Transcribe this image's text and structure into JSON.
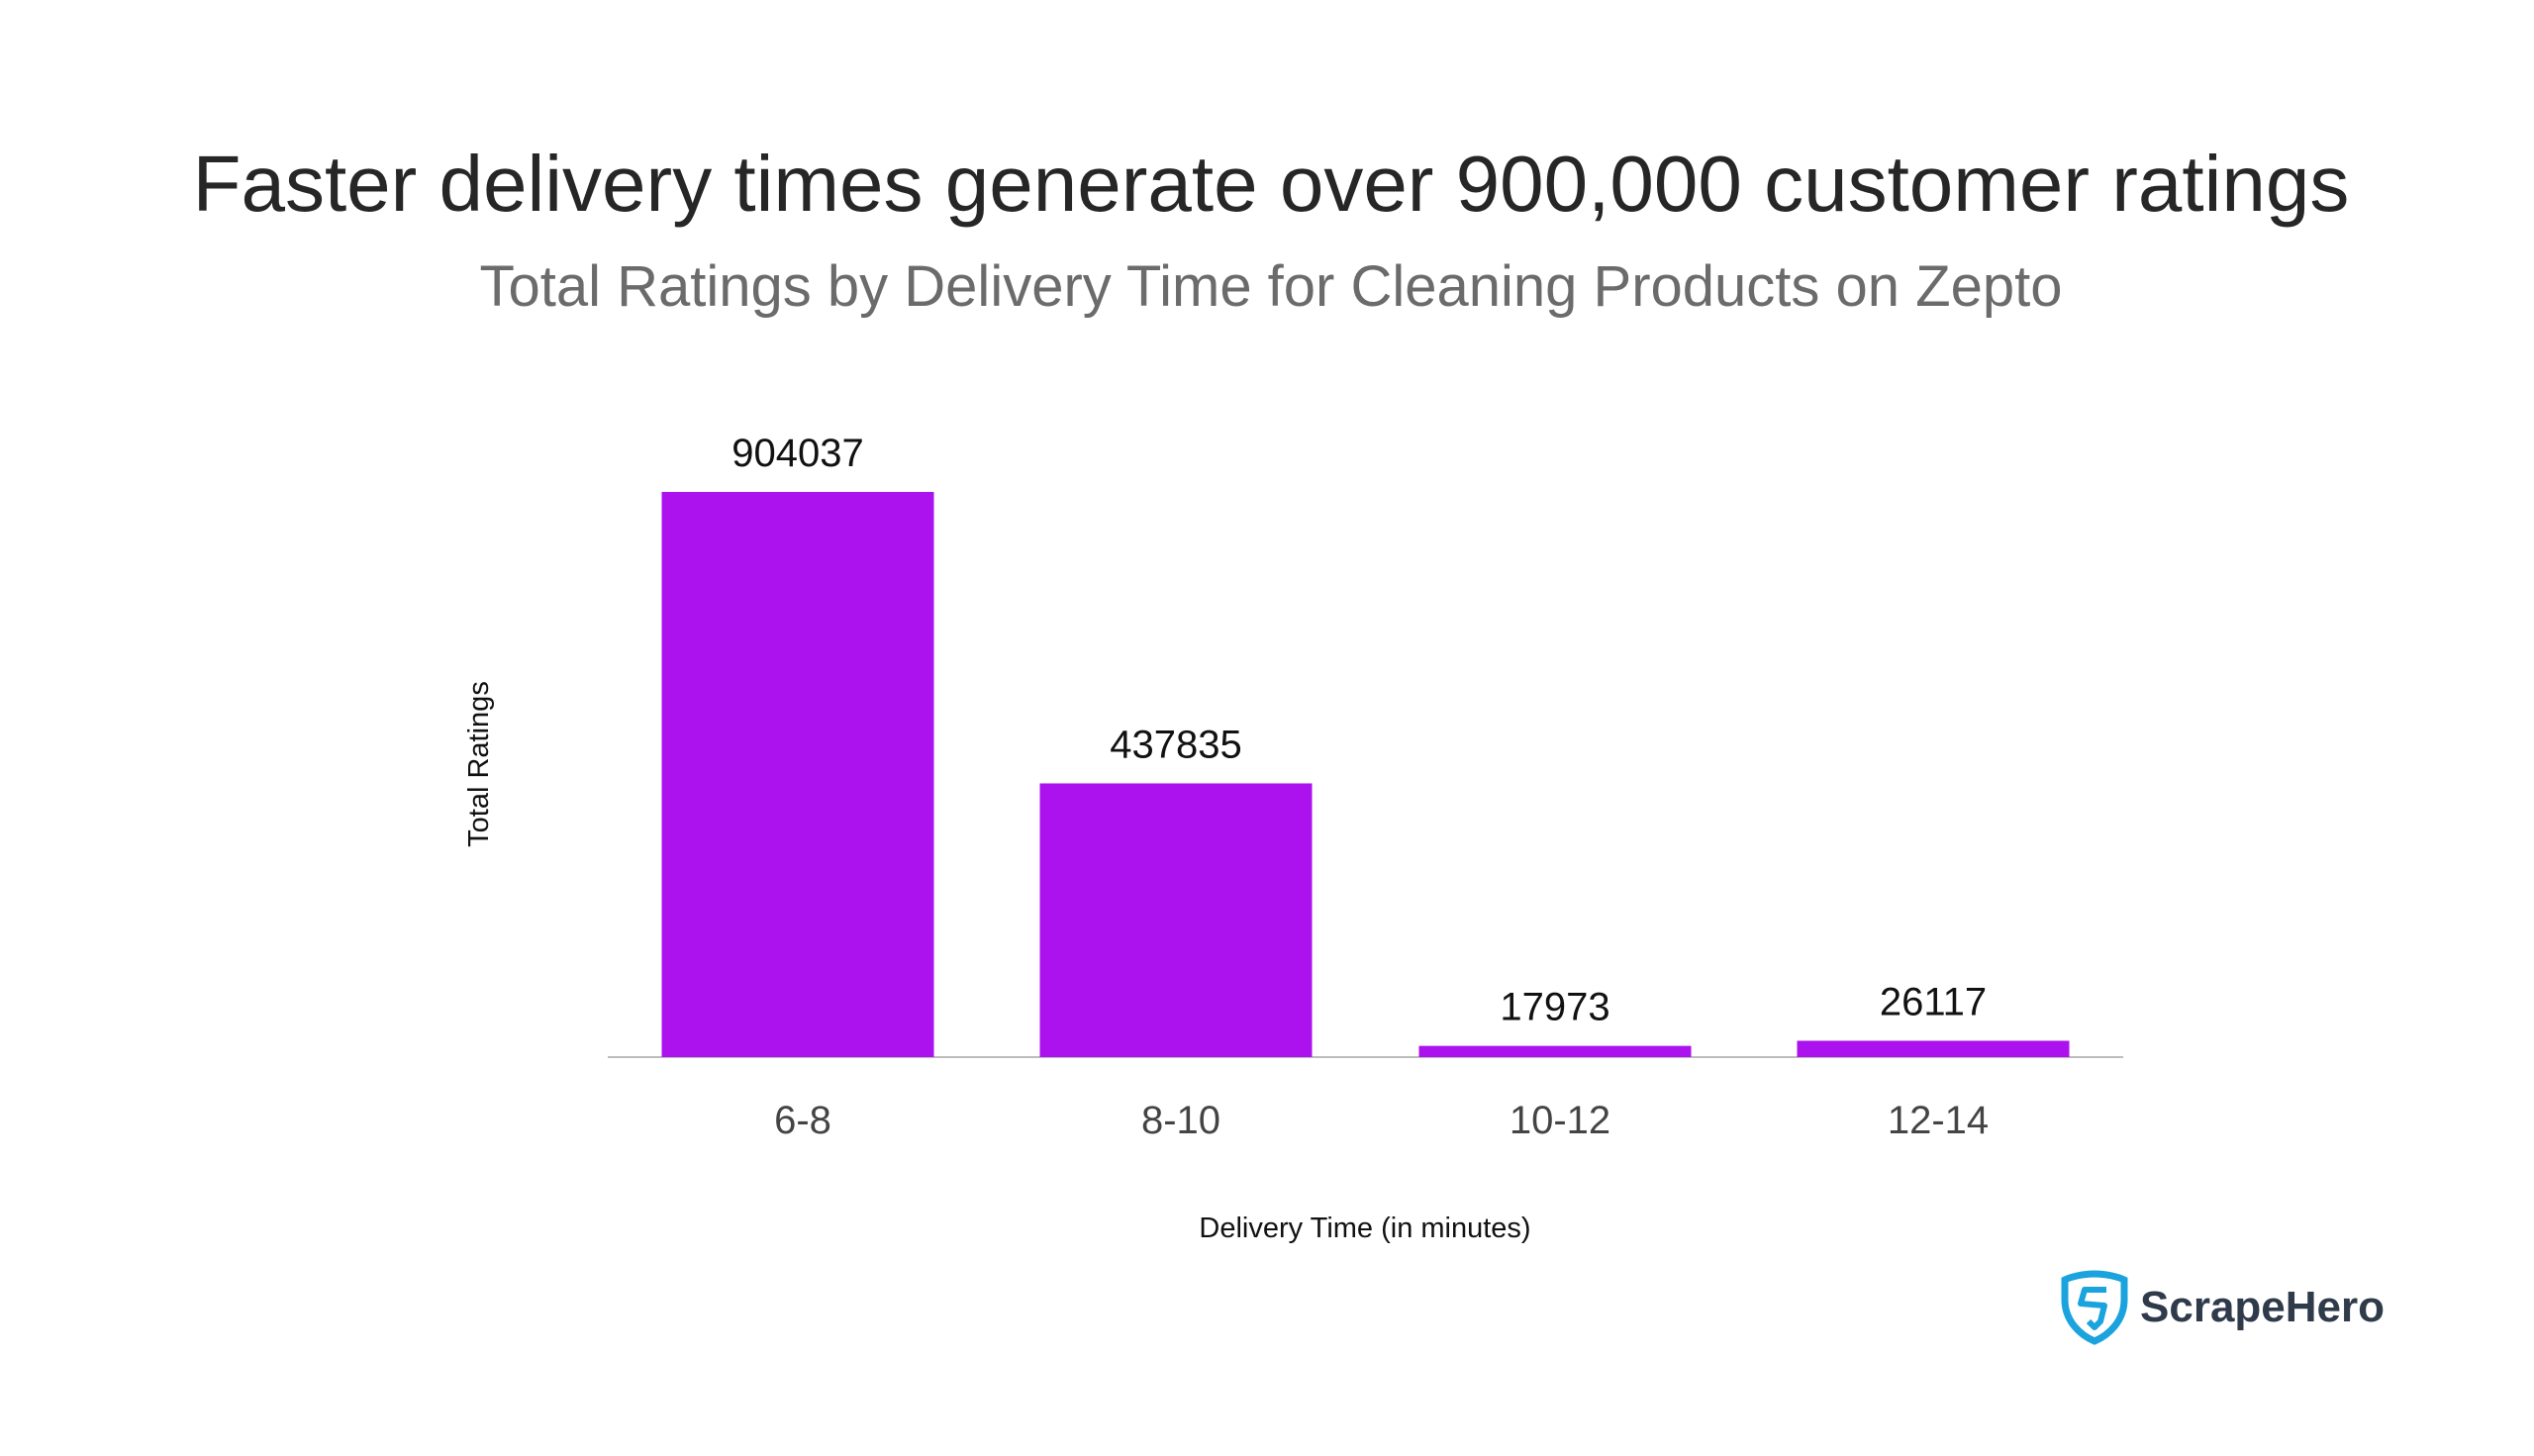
{
  "chart_data": {
    "type": "bar",
    "title": "Faster delivery times generate over 900,000 customer ratings",
    "subtitle": "Total Ratings by Delivery Time for Cleaning Products on Zepto",
    "xlabel": "Delivery Time (in minutes)",
    "ylabel": "Total Ratings",
    "categories": [
      "6-8",
      "8-10",
      "10-12",
      "12-14"
    ],
    "values": [
      904037,
      437835,
      17973,
      26117
    ],
    "ylim": [
      0,
      904037
    ],
    "grid": false,
    "bar_color": "#ab12ee",
    "data_labels": true
  },
  "brand": {
    "name": "ScrapeHero",
    "icon": "shield-s-icon",
    "icon_color": "#1aa3dc"
  }
}
